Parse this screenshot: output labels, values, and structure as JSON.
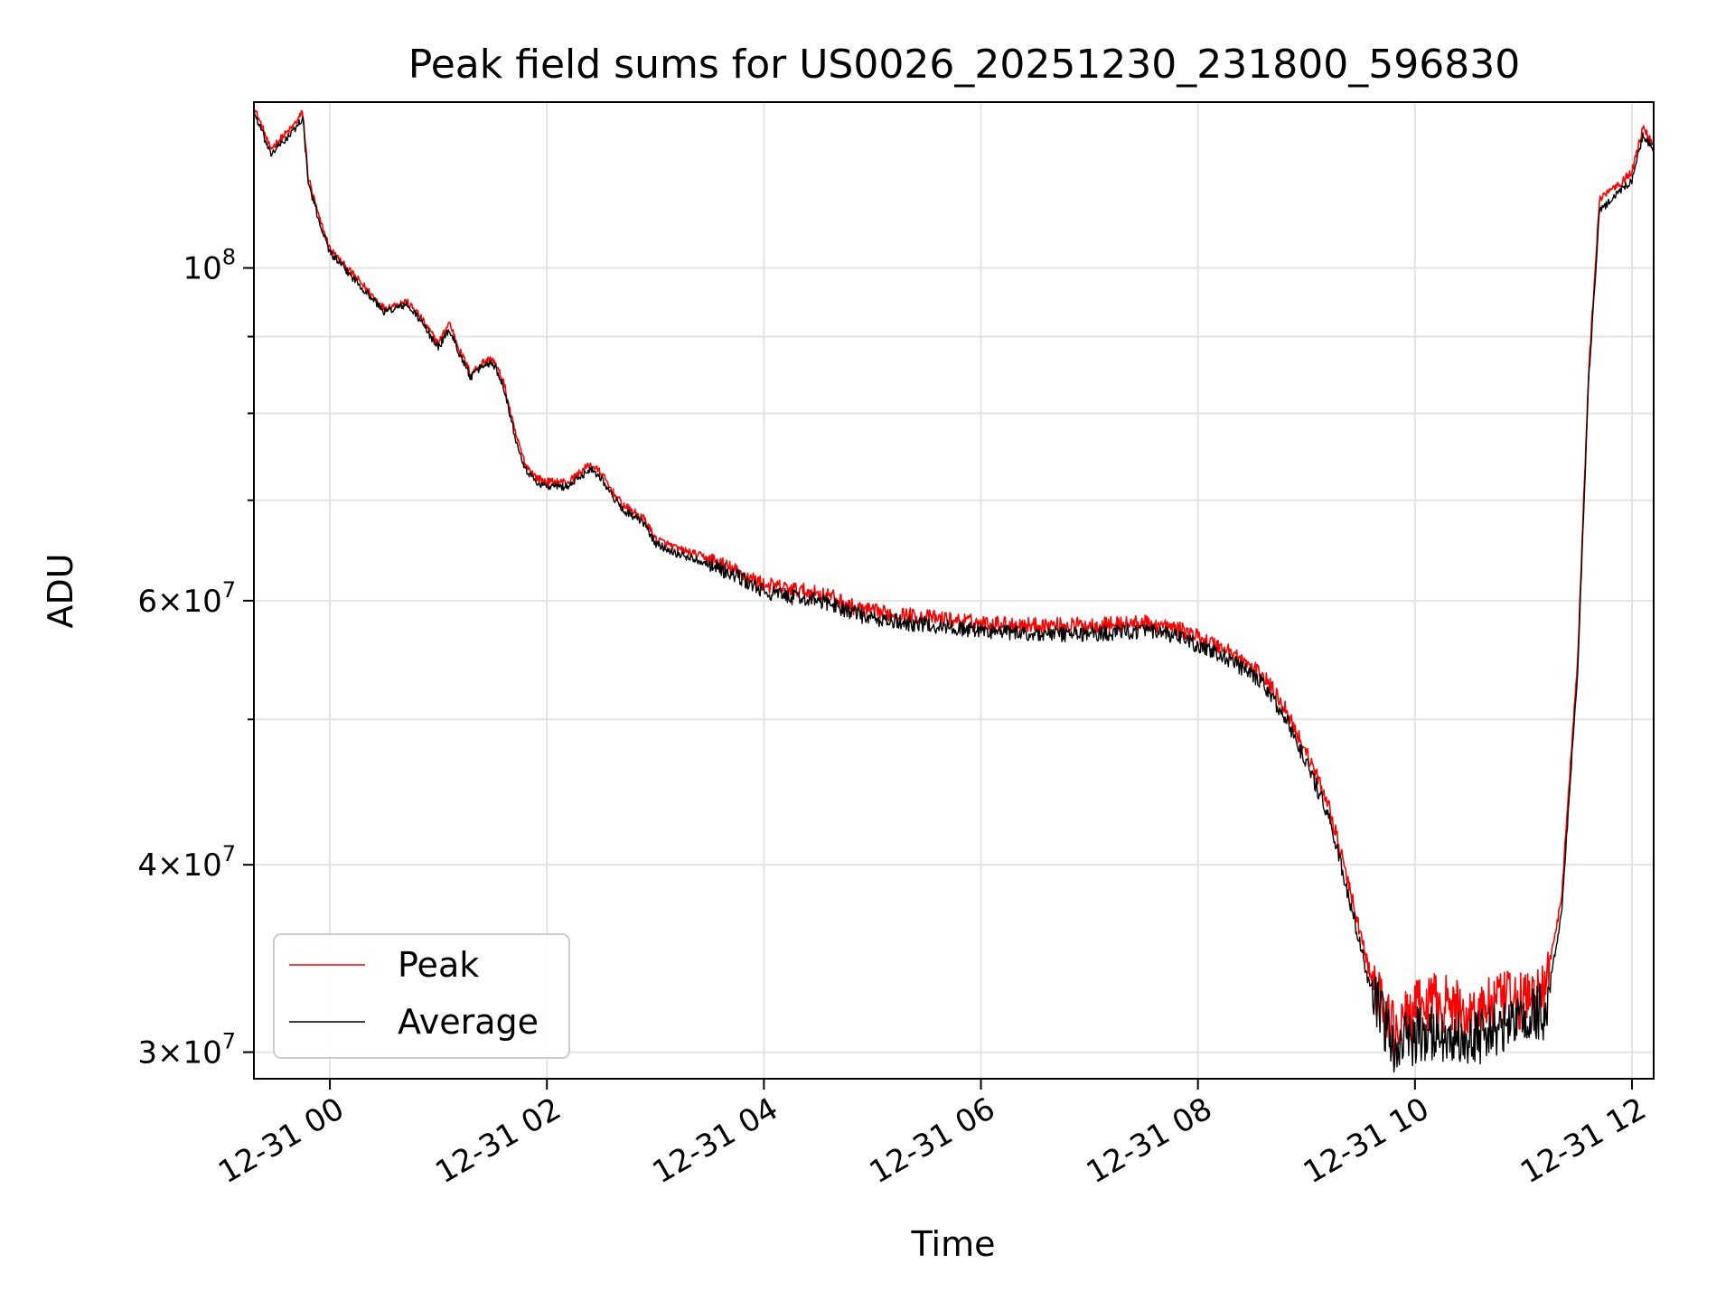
{
  "chart_data": {
    "type": "line",
    "title": "Peak field sums for US0026_20251230_231800_596830",
    "xlabel": "Time",
    "ylabel": "ADU",
    "yscale": "log",
    "xlim_hours": [
      -0.7,
      12.2
    ],
    "ylim": [
      28800000,
      129000000
    ],
    "grid": true,
    "legend_position": "lower-left",
    "x_ticks": [
      {
        "hours": 0,
        "label": "12-31 00"
      },
      {
        "hours": 2,
        "label": "12-31 02"
      },
      {
        "hours": 4,
        "label": "12-31 04"
      },
      {
        "hours": 6,
        "label": "12-31 06"
      },
      {
        "hours": 8,
        "label": "12-31 08"
      },
      {
        "hours": 10,
        "label": "12-31 10"
      },
      {
        "hours": 12,
        "label": "12-31 12"
      }
    ],
    "y_major_ticks": [
      {
        "value": 100000000,
        "base": "10",
        "exp": "8",
        "mant": ""
      },
      {
        "value": 60000000,
        "base": "10",
        "exp": "7",
        "mant": "6"
      },
      {
        "value": 40000000,
        "base": "10",
        "exp": "7",
        "mant": "4"
      },
      {
        "value": 30000000,
        "base": "10",
        "exp": "7",
        "mant": "3"
      }
    ],
    "y_minor_ticks": [
      90000000,
      80000000,
      70000000,
      50000000
    ],
    "series": [
      {
        "name": "Peak",
        "color": "#ff0000",
        "x_hours": [
          -0.7,
          -0.62,
          -0.55,
          -0.45,
          -0.35,
          -0.25,
          -0.2,
          -0.1,
          0.0,
          0.1,
          0.3,
          0.5,
          0.7,
          0.8,
          1.0,
          1.1,
          1.2,
          1.3,
          1.4,
          1.5,
          1.6,
          1.7,
          1.8,
          1.9,
          2.0,
          2.2,
          2.4,
          2.5,
          2.6,
          2.7,
          2.9,
          3.0,
          3.2,
          3.5,
          3.8,
          4.0,
          4.3,
          4.6,
          4.8,
          5.0,
          5.5,
          6.0,
          6.5,
          7.0,
          7.5,
          7.8,
          8.0,
          8.3,
          8.6,
          8.8,
          9.0,
          9.2,
          9.4,
          9.6,
          9.8,
          10.0,
          10.2,
          10.5,
          10.8,
          11.0,
          11.2,
          11.35,
          11.5,
          11.6,
          11.7,
          11.8,
          11.9,
          12.0,
          12.1,
          12.2
        ],
        "values": [
          128000000,
          124000000,
          120000000,
          122000000,
          124000000,
          127000000,
          115000000,
          108000000,
          103000000,
          101000000,
          97500000,
          94000000,
          95000000,
          93500000,
          89000000,
          92000000,
          88000000,
          85000000,
          86500000,
          87000000,
          84000000,
          78000000,
          74000000,
          72500000,
          72000000,
          72000000,
          74000000,
          73000000,
          71000000,
          69500000,
          68000000,
          66000000,
          65000000,
          64000000,
          62500000,
          61500000,
          61000000,
          60500000,
          59500000,
          59000000,
          58500000,
          58000000,
          57800000,
          57800000,
          58000000,
          57500000,
          56800000,
          55500000,
          53500000,
          51000000,
          47500000,
          44000000,
          38500000,
          33500000,
          31000000,
          32000000,
          32500000,
          31800000,
          32500000,
          32500000,
          33000000,
          38000000,
          55000000,
          85000000,
          111000000,
          113000000,
          114000000,
          116000000,
          124000000,
          121000000
        ]
      },
      {
        "name": "Average",
        "color": "#000000",
        "x_hours": [
          -0.7,
          -0.62,
          -0.55,
          -0.45,
          -0.35,
          -0.25,
          -0.2,
          -0.1,
          0.0,
          0.1,
          0.3,
          0.5,
          0.7,
          0.8,
          1.0,
          1.1,
          1.2,
          1.3,
          1.4,
          1.5,
          1.6,
          1.7,
          1.8,
          1.9,
          2.0,
          2.2,
          2.4,
          2.5,
          2.6,
          2.7,
          2.9,
          3.0,
          3.2,
          3.5,
          3.8,
          4.0,
          4.3,
          4.6,
          4.8,
          5.0,
          5.5,
          6.0,
          6.5,
          7.0,
          7.5,
          7.8,
          8.0,
          8.3,
          8.6,
          8.8,
          9.0,
          9.2,
          9.4,
          9.6,
          9.8,
          10.0,
          10.2,
          10.5,
          10.8,
          11.0,
          11.2,
          11.35,
          11.5,
          11.6,
          11.7,
          11.8,
          11.9,
          12.0,
          12.1,
          12.2
        ],
        "values": [
          127000000,
          123000000,
          119000000,
          121000000,
          123000000,
          126000000,
          114000000,
          107500000,
          102500000,
          100500000,
          97000000,
          93500000,
          94500000,
          93000000,
          88500000,
          91000000,
          87500000,
          84500000,
          86000000,
          86500000,
          83500000,
          77500000,
          73500000,
          72000000,
          71500000,
          71500000,
          73500000,
          72500000,
          70500000,
          69000000,
          67500000,
          65500000,
          64500000,
          63500000,
          62000000,
          60800000,
          60300000,
          59800000,
          59000000,
          58300000,
          57800000,
          57300000,
          57000000,
          57000000,
          57300000,
          56800000,
          56000000,
          54800000,
          52800000,
          50200000,
          46800000,
          43200000,
          37800000,
          32800000,
          30300000,
          30800000,
          31000000,
          30500000,
          31200000,
          31500000,
          32000000,
          37000000,
          54000000,
          84000000,
          109000000,
          111000000,
          112500000,
          114500000,
          122500000,
          120000000
        ]
      }
    ]
  }
}
